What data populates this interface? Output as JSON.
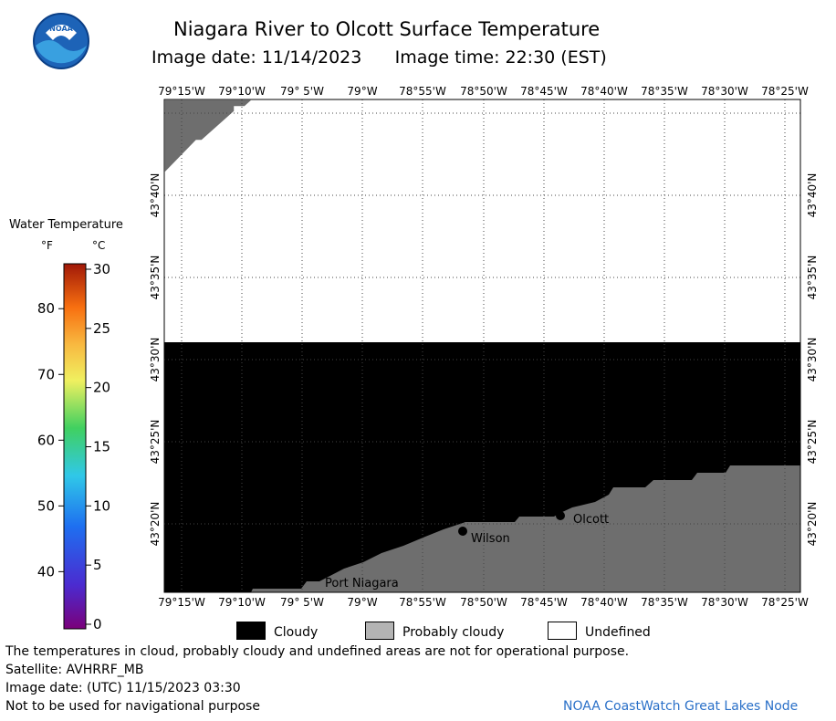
{
  "header": {
    "title": "Niagara River to Olcott Surface Temperature",
    "image_date_label": "Image date: 11/14/2023",
    "image_time_label": "Image time: 22:30 (EST)",
    "logo_text": "NOAA"
  },
  "map": {
    "lon_labels": [
      "79°15'W",
      "79°10'W",
      "79° 5'W",
      "79°W",
      "78°55'W",
      "78°50'W",
      "78°45'W",
      "78°40'W",
      "78°35'W",
      "78°30'W",
      "78°25'W"
    ],
    "lat_labels": [
      "43°40'N",
      "43°35'N",
      "43°30'N",
      "43°25'N",
      "43°20'N"
    ],
    "places": [
      {
        "name": "Port Niagara"
      },
      {
        "name": "Wilson"
      },
      {
        "name": "Olcott"
      }
    ],
    "colors": {
      "cloudy": "#000000",
      "land": "#6e6e6e",
      "undefined": "#ffffff"
    }
  },
  "color_scale": {
    "title": "Water Temperature",
    "unit_f": "°F",
    "unit_c": "°C",
    "f_ticks": [
      "80",
      "70",
      "60",
      "50",
      "40"
    ],
    "c_ticks": [
      "30",
      "25",
      "20",
      "15",
      "10",
      "5",
      "0"
    ]
  },
  "legend": {
    "cloudy": "Cloudy",
    "probably_cloudy": "Probably cloudy",
    "undefined": "Undefined",
    "colors": {
      "cloudy": "#000000",
      "probably_cloudy": "#b4b4b4",
      "undefined": "#ffffff"
    }
  },
  "footer": {
    "disclaimer": "The temperatures in cloud, probably cloudy and undefined areas are not for operational purpose.",
    "satellite": "Satellite: AVHRRF_MB",
    "utc_date": "Image date: (UTC) 11/15/2023  03:30",
    "navigation": "Not to be used for navigational purpose",
    "credit": "NOAA CoastWatch Great Lakes Node"
  }
}
